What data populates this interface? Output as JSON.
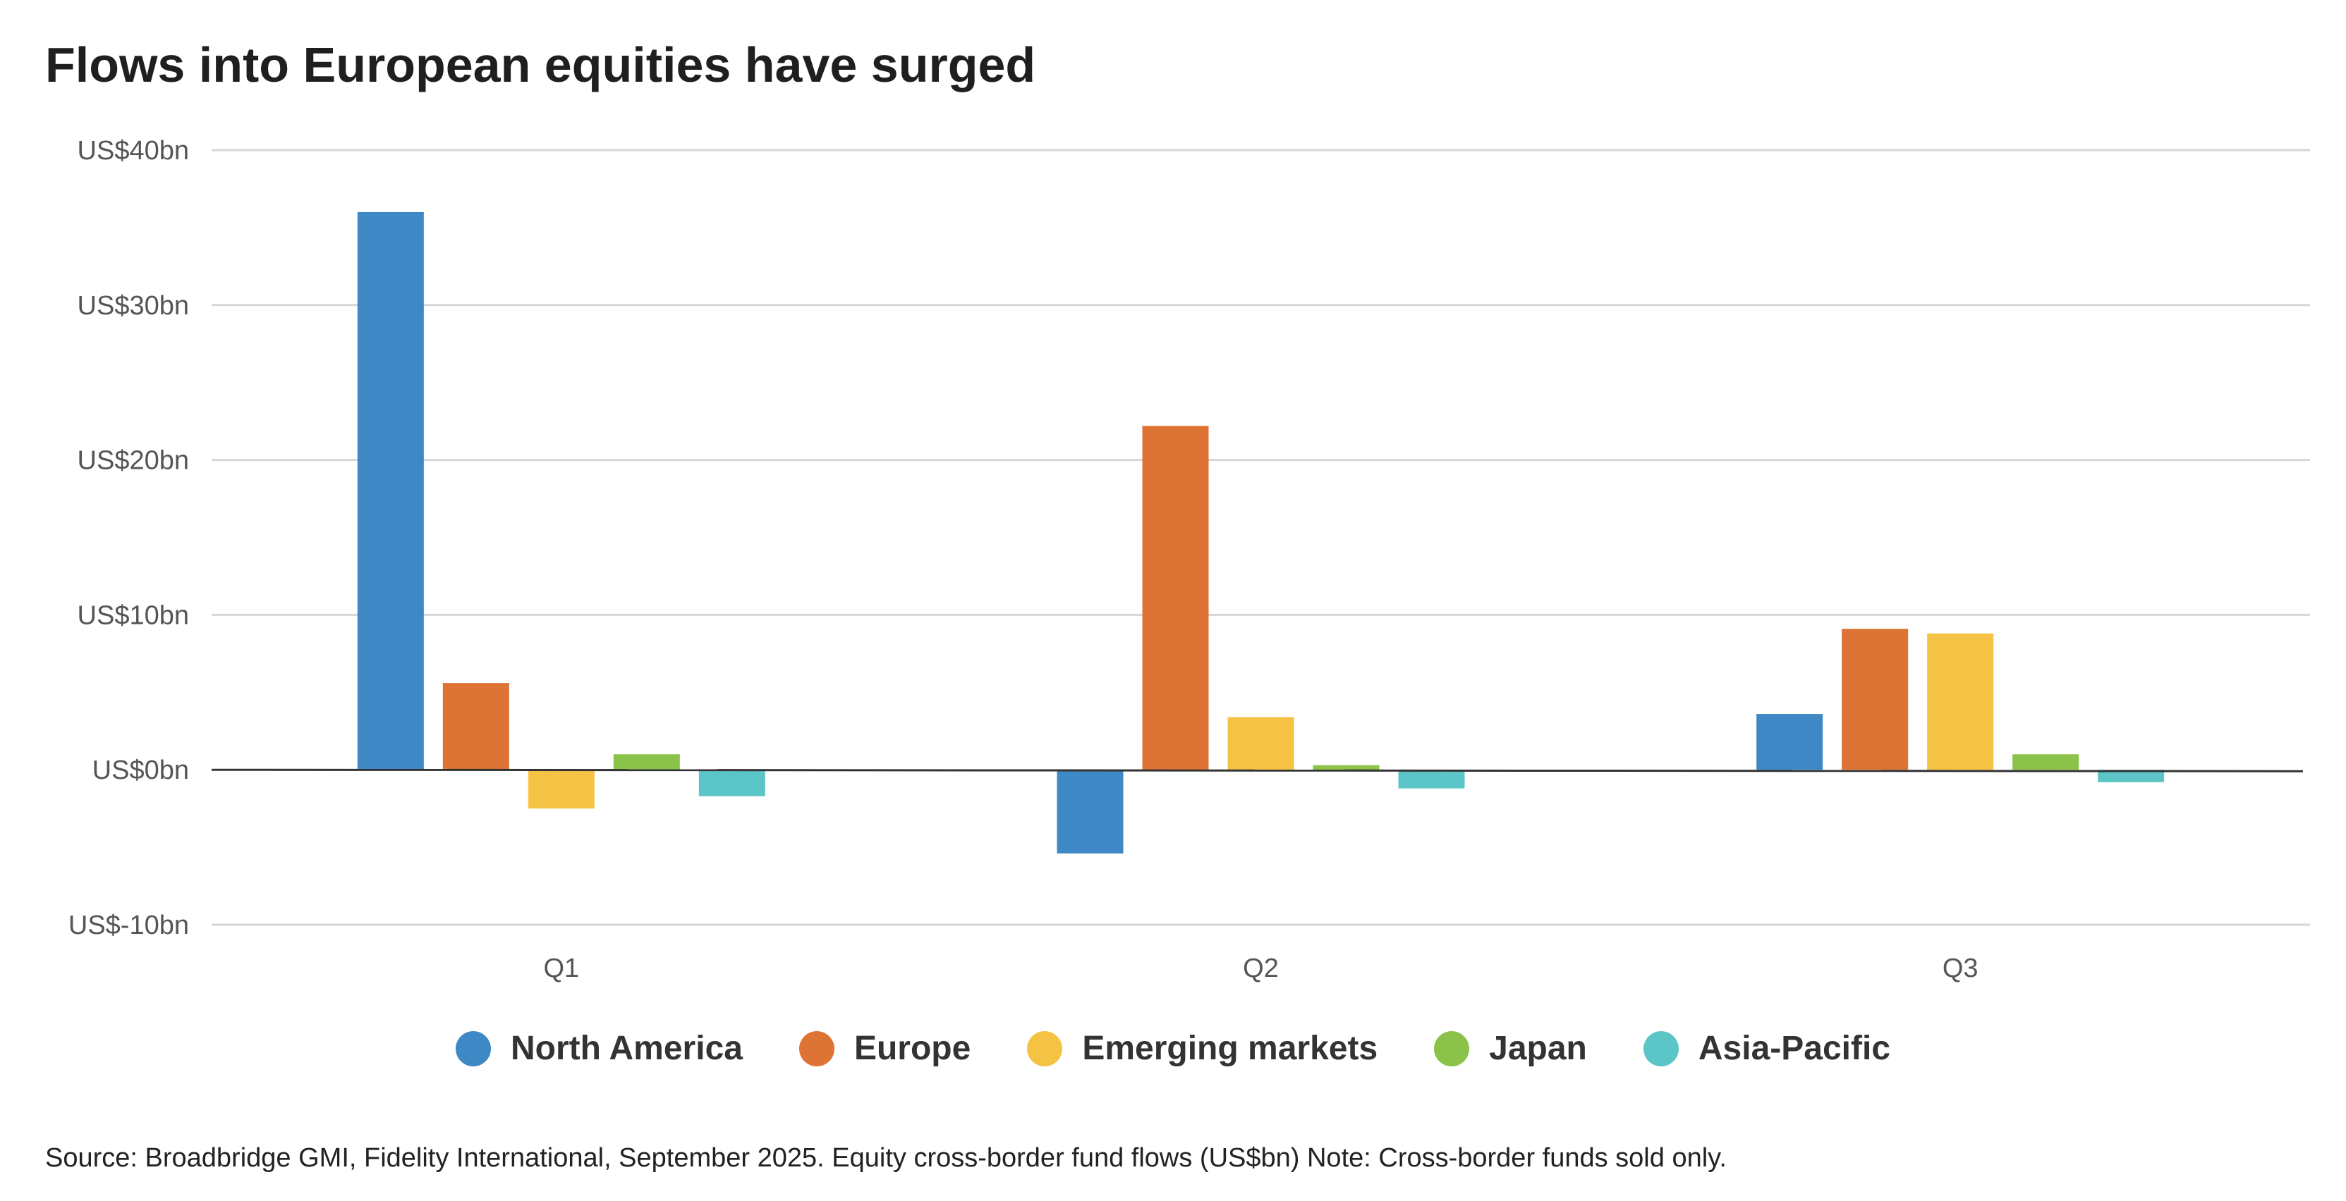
{
  "title": "Flows into European equities have surged",
  "source_note": "Source: Broadbridge GMI, Fidelity International, September 2025. Equity cross-border fund flows (US$bn) Note: Cross-border funds sold only.",
  "chart_data": {
    "type": "bar",
    "title": "Flows into European equities have surged",
    "categories": [
      "Q1",
      "Q2",
      "Q3"
    ],
    "ylim": [
      -10,
      40
    ],
    "yticks": [
      40,
      30,
      20,
      10,
      0,
      -10
    ],
    "ytick_labels": [
      "US$40bn",
      "US$30bn",
      "US$20bn",
      "US$10bn",
      "US$0bn",
      "US$-10bn"
    ],
    "grid": true,
    "legend_position": "bottom",
    "series": [
      {
        "name": "North America",
        "color": "#3d88c5",
        "values": [
          36.0,
          -5.4,
          3.6
        ]
      },
      {
        "name": "Europe",
        "color": "#dd7335",
        "values": [
          5.6,
          22.2,
          9.1
        ]
      },
      {
        "name": "Emerging markets",
        "color": "#f5c343",
        "values": [
          -2.5,
          3.4,
          8.8
        ]
      },
      {
        "name": "Japan",
        "color": "#8bc34a",
        "values": [
          1.0,
          0.3,
          1.0
        ]
      },
      {
        "name": "Asia-Pacific",
        "color": "#5bc5c8",
        "values": [
          -1.7,
          -1.2,
          -0.8
        ]
      }
    ]
  }
}
